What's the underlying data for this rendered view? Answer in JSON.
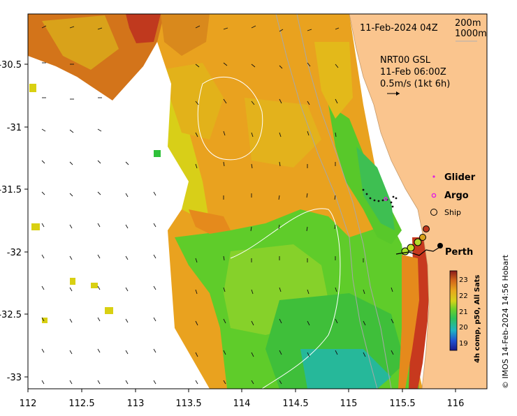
{
  "map": {
    "type": "sst_map",
    "x_ticks": [
      "112",
      "112.5",
      "113",
      "113.5",
      "114",
      "114.5",
      "115",
      "115.5",
      "116"
    ],
    "y_ticks": [
      "-30.5",
      "-31",
      "-31.5",
      "-32",
      "-32.5",
      "-33"
    ],
    "date_label": "11-Feb-2024 04Z",
    "contour_legend": [
      "200m",
      "1000m"
    ],
    "current_model": "NRT00 GSL",
    "current_time": "11-Feb 06:00Z",
    "current_scale": "0.5m/s (1kt 6h)",
    "legend": {
      "glider": "Glider",
      "argo": "Argo",
      "ship": "Ship"
    },
    "city": "Perth",
    "colorbar": {
      "ticks": [
        "23",
        "22",
        "21",
        "20",
        "19"
      ],
      "label": "4h comp, p50, All Sats"
    },
    "credit": "© IMOS 14-Feb-2024 14:56 Hobart",
    "colors": {
      "land": "#fac58e",
      "warm": "#c7510e",
      "orange": "#e99b1a",
      "yellow": "#d9d012",
      "green": "#43c32b",
      "cyan": "#22b8a9",
      "ship": "#a8e02a"
    }
  }
}
